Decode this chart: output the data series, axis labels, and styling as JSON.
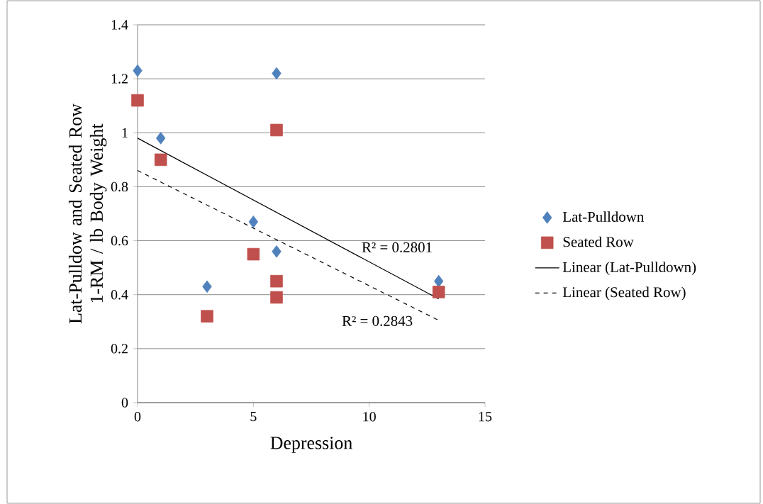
{
  "chart_data": {
    "type": "scatter",
    "xlabel": "Depression",
    "ylabel": "Lat-Pulldow and Seated Row 1-RM / lb Body Weight",
    "xlim": [
      0,
      15
    ],
    "xticks": [
      0,
      5,
      10,
      15
    ],
    "ylim": [
      0,
      1.4
    ],
    "yticks": [
      0,
      0.2,
      0.4,
      0.6,
      0.8,
      1,
      1.2,
      1.4
    ],
    "grid": "y",
    "legend": "right",
    "series": [
      {
        "name": "Lat-Pulldown",
        "marker": "diamond",
        "color": "#4f81bd",
        "x": [
          0,
          1,
          6,
          5,
          6,
          3,
          13
        ],
        "values": [
          1.23,
          0.98,
          1.22,
          0.67,
          0.56,
          0.43,
          0.45
        ]
      },
      {
        "name": "Seated Row",
        "marker": "square",
        "color": "#c0504d",
        "x": [
          0,
          1,
          6,
          5,
          6,
          6,
          3,
          13
        ],
        "values": [
          1.12,
          0.9,
          1.01,
          0.55,
          0.45,
          0.39,
          0.32,
          0.41
        ]
      },
      {
        "name": "Linear (Lat-Pulldown)",
        "type": "line",
        "marker": "none",
        "line_style": "solid",
        "color": "#000000",
        "x": [
          0,
          13
        ],
        "values": [
          0.98,
          0.384
        ]
      },
      {
        "name": "Linear (Seated Row)",
        "type": "line",
        "marker": "none",
        "line_style": "dashed",
        "color": "#000000",
        "x": [
          0,
          13
        ],
        "values": [
          0.86,
          0.305
        ]
      }
    ],
    "annotations": [
      "R² = 0.2801",
      "R² = 0.2843"
    ]
  }
}
